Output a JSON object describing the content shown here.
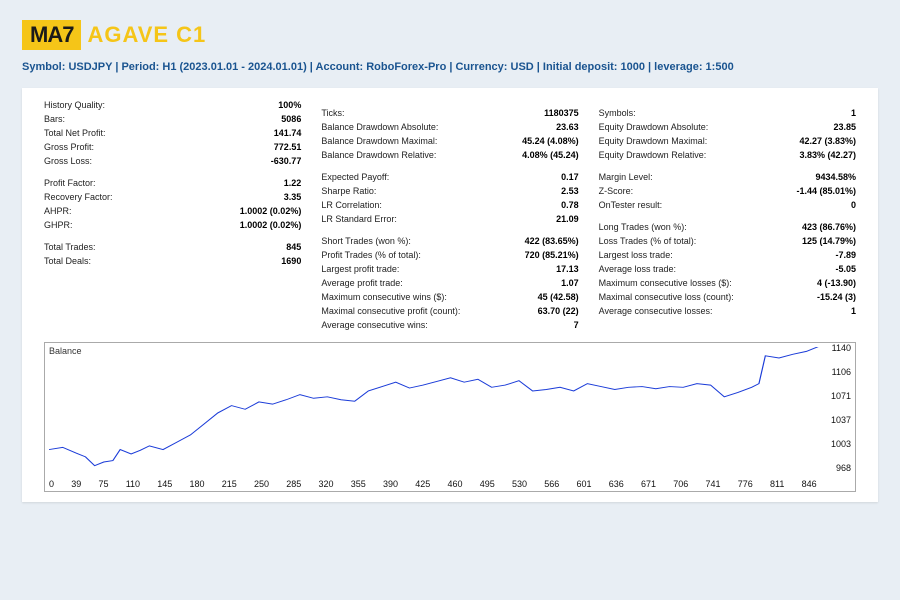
{
  "logo": {
    "badge": "MA7",
    "text": "AGAVE C1"
  },
  "subtitle_parts": [
    "Symbol: USDJPY",
    "Period: H1 (2023.01.01 - 2024.01.01)",
    "Account: RoboForex-Pro",
    "Currency: USD",
    "Initial deposit: 1000",
    "leverage: 1:500"
  ],
  "col1": [
    {
      "l": "History Quality:",
      "v": "100%"
    },
    {
      "l": "Bars:",
      "v": "5086"
    },
    {
      "l": "Total Net Profit:",
      "v": "141.74"
    },
    {
      "l": "Gross Profit:",
      "v": "772.51"
    },
    {
      "l": "Gross Loss:",
      "v": "-630.77"
    },
    {
      "spacer": true
    },
    {
      "l": "Profit Factor:",
      "v": "1.22"
    },
    {
      "l": "Recovery Factor:",
      "v": "3.35"
    },
    {
      "l": "AHPR:",
      "v": "1.0002 (0.02%)"
    },
    {
      "l": "GHPR:",
      "v": "1.0002 (0.02%)"
    },
    {
      "spacer": true
    },
    {
      "l": "Total Trades:",
      "v": "845"
    },
    {
      "l": "Total Deals:",
      "v": "1690"
    }
  ],
  "col2": [
    {
      "spacer": true
    },
    {
      "l": "Ticks:",
      "v": "1180375"
    },
    {
      "l": "Balance Drawdown Absolute:",
      "v": "23.63"
    },
    {
      "l": "Balance Drawdown Maximal:",
      "v": "45.24 (4.08%)"
    },
    {
      "l": "Balance Drawdown Relative:",
      "v": "4.08% (45.24)"
    },
    {
      "spacer": true
    },
    {
      "l": "Expected Payoff:",
      "v": "0.17"
    },
    {
      "l": "Sharpe Ratio:",
      "v": "2.53"
    },
    {
      "l": "LR Correlation:",
      "v": "0.78"
    },
    {
      "l": "LR Standard Error:",
      "v": "21.09"
    },
    {
      "spacer": true
    },
    {
      "l": "Short Trades (won %):",
      "v": "422 (83.65%)"
    },
    {
      "l": "Profit Trades (% of total):",
      "v": "720 (85.21%)"
    },
    {
      "l": "Largest profit trade:",
      "v": "17.13"
    },
    {
      "l": "Average profit trade:",
      "v": "1.07"
    },
    {
      "l": "Maximum consecutive wins ($):",
      "v": "45 (42.58)"
    },
    {
      "l": "Maximal consecutive profit (count):",
      "v": "63.70 (22)"
    },
    {
      "l": "Average consecutive wins:",
      "v": "7"
    }
  ],
  "col3": [
    {
      "spacer": true
    },
    {
      "l": "Symbols:",
      "v": "1"
    },
    {
      "l": "Equity Drawdown Absolute:",
      "v": "23.85"
    },
    {
      "l": "Equity Drawdown Maximal:",
      "v": "42.27 (3.83%)"
    },
    {
      "l": "Equity Drawdown Relative:",
      "v": "3.83% (42.27)"
    },
    {
      "spacer": true
    },
    {
      "l": "Margin Level:",
      "v": "9434.58%"
    },
    {
      "l": "Z-Score:",
      "v": "-1.44 (85.01%)"
    },
    {
      "l": "OnTester result:",
      "v": "0"
    },
    {
      "l": "",
      "v": ""
    },
    {
      "spacer": true
    },
    {
      "l": "Long Trades (won %):",
      "v": "423 (86.76%)"
    },
    {
      "l": "Loss Trades (% of total):",
      "v": "125 (14.79%)"
    },
    {
      "l": "Largest loss trade:",
      "v": "-7.89"
    },
    {
      "l": "Average loss trade:",
      "v": "-5.05"
    },
    {
      "l": "Maximum consecutive losses ($):",
      "v": "4 (-13.90)"
    },
    {
      "l": "Maximal consecutive loss (count):",
      "v": "-15.24 (3)"
    },
    {
      "l": "Average consecutive losses:",
      "v": "1"
    }
  ],
  "chart": {
    "title": "Balance",
    "type": "line",
    "line_color": "#1a3bd8",
    "line_width": 1.3,
    "background_color": "#ffffff",
    "ylim": [
      968,
      1140
    ],
    "y_ticks": [
      1140,
      1106,
      1071,
      1037,
      1003,
      968
    ],
    "x_ticks": [
      0,
      39,
      75,
      110,
      145,
      180,
      215,
      250,
      285,
      320,
      355,
      390,
      425,
      460,
      495,
      530,
      566,
      601,
      636,
      671,
      706,
      741,
      776,
      811,
      846
    ],
    "x_max": 846,
    "series": [
      [
        0,
        1000
      ],
      [
        15,
        1003
      ],
      [
        30,
        995
      ],
      [
        40,
        990
      ],
      [
        50,
        978
      ],
      [
        60,
        983
      ],
      [
        70,
        985
      ],
      [
        78,
        1000
      ],
      [
        90,
        994
      ],
      [
        100,
        999
      ],
      [
        110,
        1005
      ],
      [
        125,
        1000
      ],
      [
        140,
        1010
      ],
      [
        155,
        1020
      ],
      [
        170,
        1035
      ],
      [
        185,
        1050
      ],
      [
        200,
        1060
      ],
      [
        215,
        1055
      ],
      [
        230,
        1065
      ],
      [
        245,
        1062
      ],
      [
        260,
        1068
      ],
      [
        275,
        1075
      ],
      [
        290,
        1070
      ],
      [
        305,
        1072
      ],
      [
        320,
        1068
      ],
      [
        335,
        1066
      ],
      [
        350,
        1080
      ],
      [
        365,
        1086
      ],
      [
        380,
        1092
      ],
      [
        395,
        1084
      ],
      [
        410,
        1088
      ],
      [
        425,
        1093
      ],
      [
        440,
        1098
      ],
      [
        455,
        1092
      ],
      [
        470,
        1096
      ],
      [
        485,
        1085
      ],
      [
        500,
        1088
      ],
      [
        515,
        1094
      ],
      [
        530,
        1080
      ],
      [
        545,
        1082
      ],
      [
        560,
        1085
      ],
      [
        575,
        1080
      ],
      [
        590,
        1090
      ],
      [
        605,
        1086
      ],
      [
        620,
        1082
      ],
      [
        635,
        1085
      ],
      [
        650,
        1086
      ],
      [
        665,
        1083
      ],
      [
        680,
        1086
      ],
      [
        695,
        1085
      ],
      [
        710,
        1090
      ],
      [
        725,
        1088
      ],
      [
        740,
        1072
      ],
      [
        755,
        1078
      ],
      [
        770,
        1085
      ],
      [
        778,
        1090
      ],
      [
        785,
        1128
      ],
      [
        800,
        1125
      ],
      [
        815,
        1130
      ],
      [
        830,
        1134
      ],
      [
        846,
        1142
      ]
    ]
  }
}
